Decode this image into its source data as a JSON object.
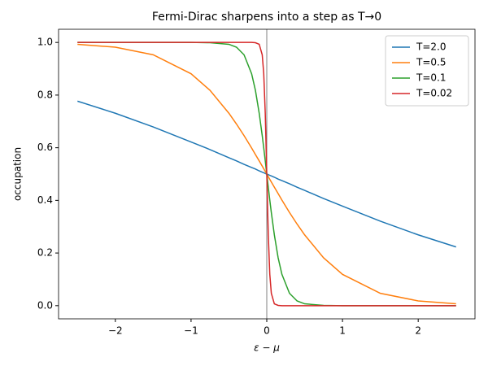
{
  "chart_data": {
    "type": "line",
    "title": "Fermi-Dirac sharpens into a step as T→0",
    "x_label": "ε − μ",
    "y_label": "occupation",
    "x": [
      -2.5,
      -2,
      -1.5,
      -1,
      -0.75,
      -0.5,
      -0.4,
      -0.3,
      -0.2,
      -0.15,
      -0.1,
      -0.06,
      -0.04,
      -0.02,
      0,
      0.02,
      0.04,
      0.06,
      0.1,
      0.15,
      0.2,
      0.3,
      0.4,
      0.5,
      0.75,
      1,
      1.5,
      2,
      2.5
    ],
    "series": [
      {
        "name": "T=2.0",
        "color": "#1f77b4",
        "values": [
          0.777,
          0.731,
          0.679,
          0.622,
          0.593,
          0.562,
          0.55,
          0.537,
          0.525,
          0.519,
          0.512,
          0.507,
          0.505,
          0.502,
          0.5,
          0.498,
          0.495,
          0.493,
          0.488,
          0.481,
          0.475,
          0.463,
          0.45,
          0.438,
          0.407,
          0.378,
          0.321,
          0.269,
          0.223
        ]
      },
      {
        "name": "T=0.5",
        "color": "#ff7f0e",
        "values": [
          0.993,
          0.982,
          0.953,
          0.881,
          0.818,
          0.731,
          0.69,
          0.646,
          0.599,
          0.574,
          0.55,
          0.53,
          0.52,
          0.51,
          0.5,
          0.49,
          0.48,
          0.47,
          0.45,
          0.426,
          0.401,
          0.354,
          0.31,
          0.269,
          0.182,
          0.119,
          0.047,
          0.018,
          0.007
        ]
      },
      {
        "name": "T=0.1",
        "color": "#2ca02c",
        "values": [
          1,
          1,
          1,
          1,
          0.999,
          0.993,
          0.982,
          0.953,
          0.881,
          0.818,
          0.731,
          0.646,
          0.599,
          0.55,
          0.5,
          0.45,
          0.401,
          0.354,
          0.269,
          0.182,
          0.119,
          0.047,
          0.018,
          0.007,
          0.001,
          0,
          0,
          0,
          0
        ]
      },
      {
        "name": "T=0.02",
        "color": "#d62728",
        "values": [
          1,
          1,
          1,
          1,
          1,
          1,
          1,
          1,
          1,
          0.999,
          0.993,
          0.953,
          0.881,
          0.731,
          0.5,
          0.269,
          0.119,
          0.047,
          0.007,
          0.001,
          0,
          0,
          0,
          0,
          0,
          0,
          0,
          0,
          0
        ]
      }
    ],
    "vlines": [
      0
    ],
    "xlim": [
      -2.75,
      2.75
    ],
    "ylim": [
      -0.05,
      1.05
    ],
    "xticks": [
      {
        "value": -2,
        "label": "−2"
      },
      {
        "value": -1,
        "label": "−1"
      },
      0,
      1,
      2
    ],
    "yticks": [
      {
        "value": 0,
        "label": "0.0"
      },
      0.2,
      0.4,
      0.6,
      0.8,
      {
        "value": 1,
        "label": "1.0"
      }
    ],
    "legend": "upper right"
  }
}
